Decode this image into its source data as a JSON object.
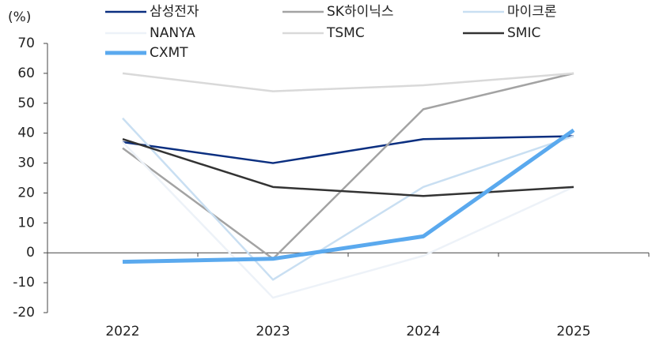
{
  "chart_data": {
    "type": "line",
    "y_label": "(%)",
    "categories": [
      "2022",
      "2023",
      "2024",
      "2025"
    ],
    "series": [
      {
        "name": "삼성전자",
        "color": "#0b2f80",
        "line_width": 2.5,
        "values": [
          37,
          30,
          38,
          39
        ]
      },
      {
        "name": "SK하이닉스",
        "color": "#a3a3a3",
        "line_width": 2.5,
        "values": [
          35,
          -2,
          48,
          60
        ]
      },
      {
        "name": "마이크론",
        "color": "#c9dff2",
        "line_width": 2.5,
        "values": [
          45,
          -9,
          22,
          39
        ]
      },
      {
        "name": "NANYA",
        "color": "#edf2f8",
        "line_width": 2.5,
        "values": [
          37,
          -15,
          -1,
          22
        ]
      },
      {
        "name": "TSMC",
        "color": "#d9d9d9",
        "line_width": 2.5,
        "values": [
          60,
          54,
          56,
          60
        ]
      },
      {
        "name": "SMIC",
        "color": "#333333",
        "line_width": 2.5,
        "values": [
          38,
          22,
          19,
          22
        ]
      },
      {
        "name": "CXMT",
        "color": "#5aa9ee",
        "line_width": 5,
        "values": [
          -3,
          -2,
          5.5,
          41
        ]
      }
    ],
    "ylim": [
      -20,
      70
    ],
    "yticks": [
      70,
      60,
      50,
      40,
      30,
      20,
      10,
      0,
      -10,
      -20
    ]
  }
}
